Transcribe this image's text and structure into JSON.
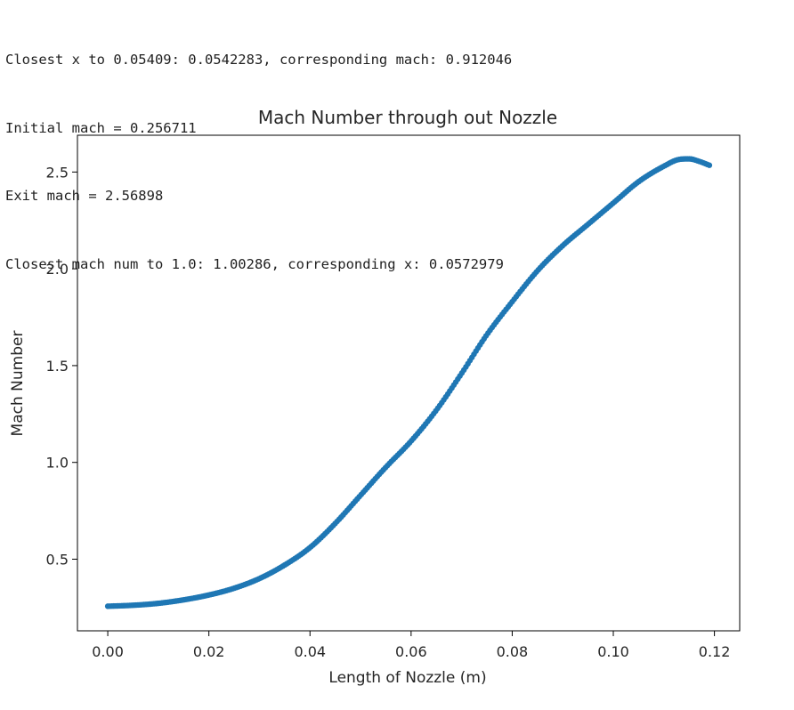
{
  "console": {
    "lines": [
      "Closest x to 0.05409: 0.0542283, corresponding mach: 0.912046",
      "Initial mach = 0.256711",
      "Exit mach = 2.56898",
      "Closest mach num to 1.0: 1.00286, corresponding x: 0.0572979"
    ]
  },
  "chart_data": {
    "type": "scatter",
    "title": "Mach Number through out Nozzle",
    "xlabel": "Length of Nozzle (m)",
    "ylabel": "Mach Number",
    "xlim": [
      -0.006,
      0.125
    ],
    "ylim": [
      0.13,
      2.69
    ],
    "xticks": [
      0.0,
      0.02,
      0.04,
      0.06,
      0.08,
      0.1,
      0.12
    ],
    "xtick_labels": [
      "0.00",
      "0.02",
      "0.04",
      "0.06",
      "0.08",
      "0.10",
      "0.12"
    ],
    "yticks": [
      0.5,
      1.0,
      1.5,
      2.0,
      2.5
    ],
    "ytick_labels": [
      "0.5",
      "1.0",
      "1.5",
      "2.0",
      "2.5"
    ],
    "grid": false,
    "color": "#1f77b4",
    "series": [
      {
        "x": [
          0.0,
          0.005,
          0.01,
          0.015,
          0.02,
          0.025,
          0.03,
          0.035,
          0.04,
          0.045,
          0.05,
          0.055,
          0.06,
          0.065,
          0.07,
          0.075,
          0.08,
          0.085,
          0.09,
          0.095,
          0.1,
          0.105,
          0.11,
          0.113,
          0.115,
          0.117,
          0.119
        ],
        "y": [
          0.257,
          0.262,
          0.272,
          0.29,
          0.315,
          0.35,
          0.4,
          0.47,
          0.56,
          0.685,
          0.83,
          0.975,
          1.11,
          1.27,
          1.46,
          1.66,
          1.83,
          1.99,
          2.12,
          2.23,
          2.34,
          2.45,
          2.53,
          2.565,
          2.568,
          2.555,
          2.535
        ]
      }
    ]
  }
}
